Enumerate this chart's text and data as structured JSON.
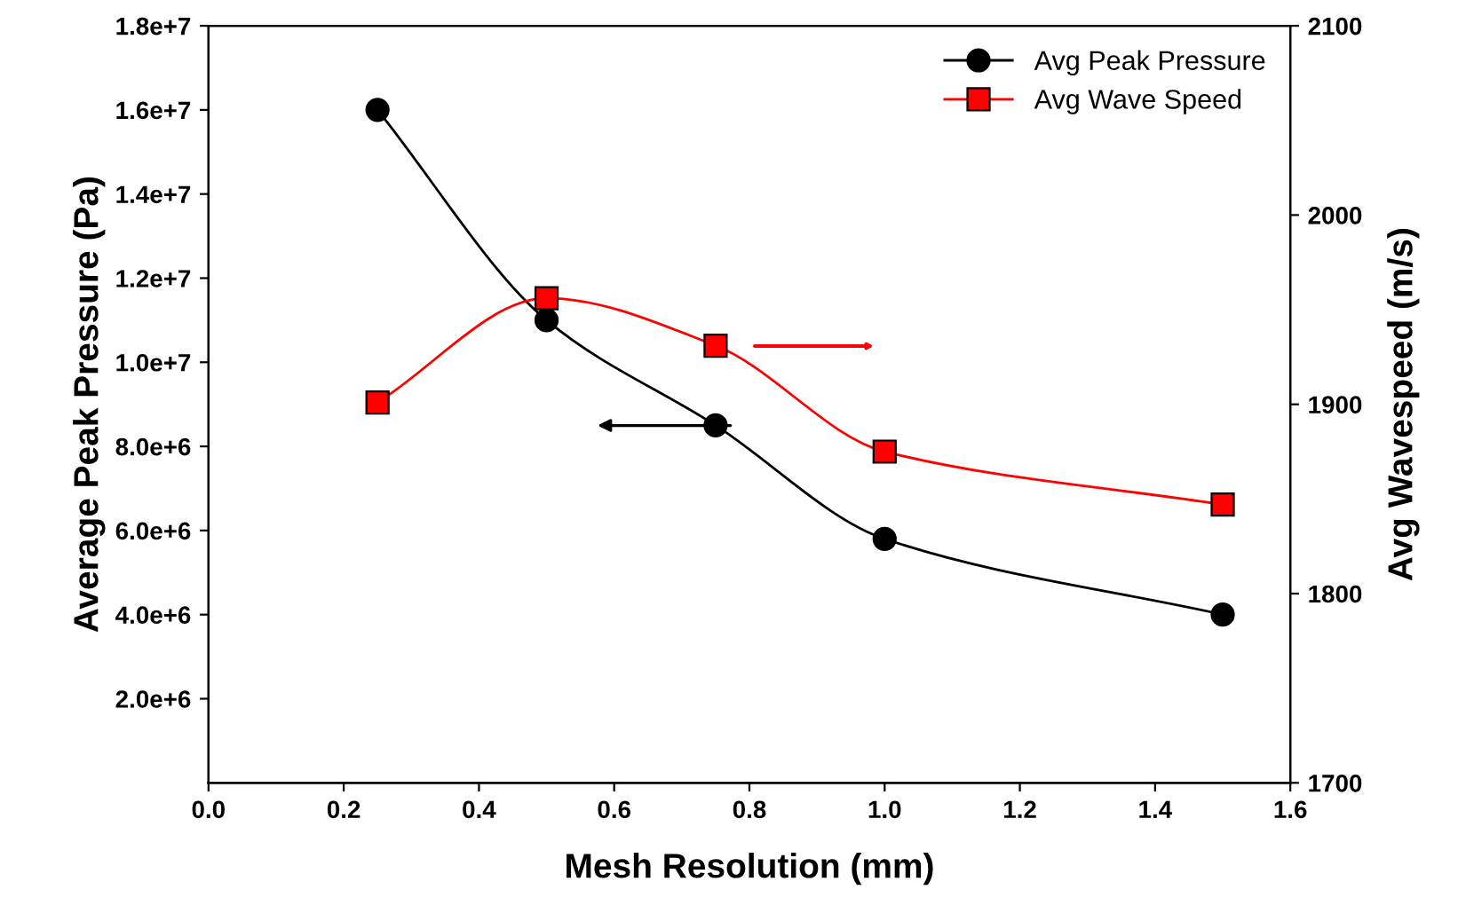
{
  "chart_data": {
    "type": "line",
    "xlabel": "Mesh Resolution (mm)",
    "ylabel": "Average Peak Pressure (Pa)",
    "y2label": "Avg Wavespeed (m/s)",
    "x": [
      0.25,
      0.5,
      0.75,
      1.0,
      1.5
    ],
    "series": [
      {
        "name": "Avg Peak Pressure",
        "color": "#000000",
        "marker": "circle",
        "values": [
          16000000,
          11000000,
          8500000,
          5800000,
          4000000
        ]
      },
      {
        "name": "Avg Wave Speed",
        "color": "#ff0000",
        "marker": "square",
        "axis": "y2",
        "values": [
          1901,
          1956,
          1931,
          1875,
          1847
        ]
      }
    ],
    "xlim": [
      0.0,
      1.6
    ],
    "xticks": [
      {
        "value": 0.0,
        "label": "0.0"
      },
      {
        "value": 0.2,
        "label": "0.2"
      },
      {
        "value": 0.4,
        "label": "0.4"
      },
      {
        "value": 0.6,
        "label": "0.6"
      },
      {
        "value": 0.8,
        "label": "0.8"
      },
      {
        "value": 1.0,
        "label": "1.0"
      },
      {
        "value": 1.2,
        "label": "1.2"
      },
      {
        "value": 1.4,
        "label": "1.4"
      },
      {
        "value": 1.6,
        "label": "1.6"
      }
    ],
    "ylim": [
      0,
      18000000
    ],
    "yticks": [
      {
        "value": 2000000,
        "label": "2.0e+6"
      },
      {
        "value": 4000000,
        "label": "4.0e+6"
      },
      {
        "value": 6000000,
        "label": "6.0e+6"
      },
      {
        "value": 8000000,
        "label": "8.0e+6"
      },
      {
        "value": 10000000,
        "label": "1.0e+7"
      },
      {
        "value": 12000000,
        "label": "1.2e+7"
      },
      {
        "value": 14000000,
        "label": "1.4e+7"
      },
      {
        "value": 16000000,
        "label": "1.6e+7"
      },
      {
        "value": 18000000,
        "label": "1.8e+7"
      }
    ],
    "y2lim": [
      1700,
      2100
    ],
    "y2ticks": [
      1700,
      1800,
      1900,
      2000,
      2100
    ],
    "legend": "top right",
    "grid": false
  }
}
